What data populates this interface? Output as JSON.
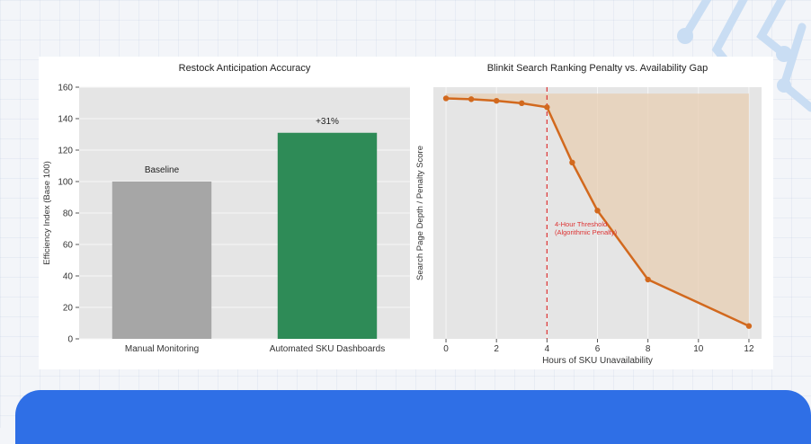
{
  "chart_data": [
    {
      "type": "bar",
      "title": "Restock Anticipation Accuracy",
      "xlabel": "",
      "ylabel": "Efficiency Index (Base 100)",
      "categories": [
        "Manual Monitoring",
        "Automated SKU Dashboards"
      ],
      "values": [
        100,
        131
      ],
      "bar_colors": [
        "#a6a6a6",
        "#2e8b57"
      ],
      "bar_labels": [
        "Baseline",
        "+31%"
      ],
      "ylim": [
        0,
        160
      ],
      "yticks": [
        0,
        20,
        40,
        60,
        80,
        100,
        120,
        140,
        160
      ],
      "grid": true,
      "plot_background": "#e5e5e5"
    },
    {
      "type": "line",
      "title": "Blinkit Search Ranking Penalty vs. Availability Gap",
      "xlabel": "Hours of SKU Unavailability",
      "ylabel": "Search Page Depth / Penalty Score",
      "x": [
        0,
        1,
        2,
        3,
        4,
        5,
        6,
        8,
        12
      ],
      "y": [
        150,
        149.5,
        148.5,
        147,
        144.5,
        110,
        80,
        37,
        8
      ],
      "xlim": [
        -0.5,
        12.5
      ],
      "ylim": [
        0,
        157
      ],
      "xticks": [
        0,
        2,
        4,
        6,
        8,
        10,
        12
      ],
      "line_color": "#d2691e",
      "fill_color": "#e7cdb2",
      "fill_top": 153,
      "fill_from_x": 0,
      "threshold_x": 4,
      "threshold_color": "#dd3333",
      "annotation": "4-Hour Threshold\n(Algorithmic Penalty)",
      "annotation_at": [
        4.2,
        70
      ],
      "grid": true,
      "plot_background": "#e5e5e5"
    }
  ]
}
